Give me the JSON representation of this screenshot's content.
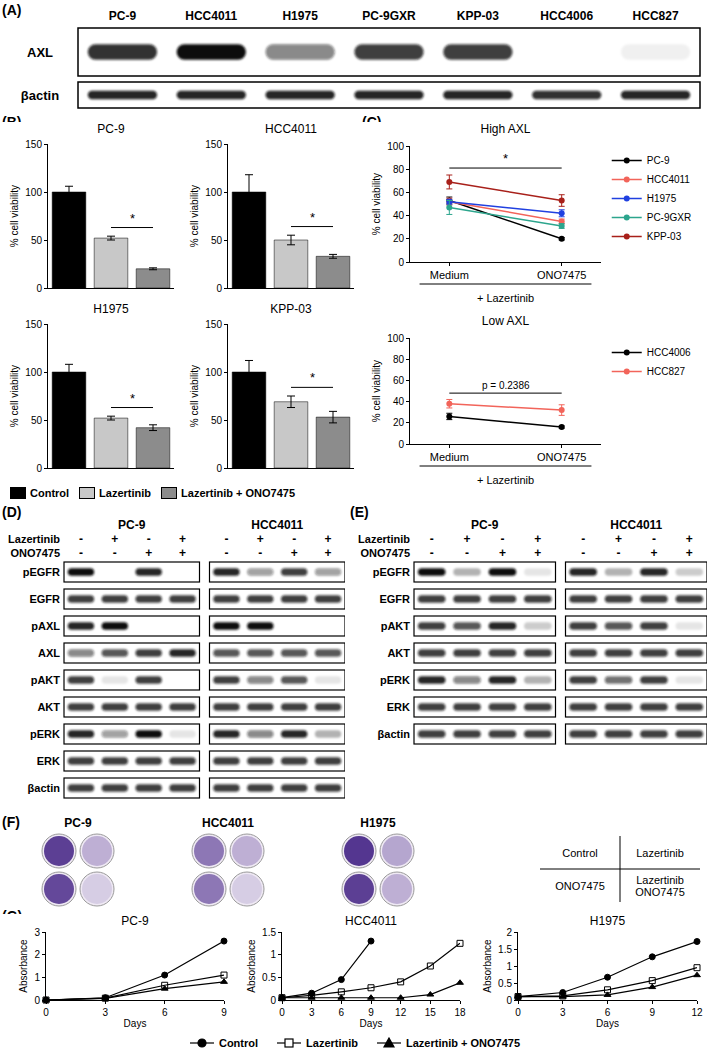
{
  "panel_labels": [
    "(A)",
    "(B)",
    "(C)",
    "(D)",
    "(E)",
    "(F)",
    "(G)"
  ],
  "blot_A": {
    "lanes": [
      "PC-9",
      "HCC4011",
      "H1975",
      "PC-9GXR",
      "KPP-03",
      "HCC4006",
      "HCC827"
    ],
    "rows": [
      {
        "name": "AXL",
        "bands": [
          0.85,
          1,
          0.5,
          0.8,
          0.8,
          0,
          0.06
        ]
      },
      {
        "name": "βactin",
        "bands": [
          0.9,
          0.9,
          0.9,
          0.9,
          0.9,
          0.85,
          0.9
        ]
      }
    ]
  },
  "chart_data": [
    {
      "type": "bar",
      "title": "PC-9",
      "categories": [
        null,
        null,
        null
      ],
      "values": [
        100,
        52,
        20
      ],
      "errors": [
        6,
        2,
        1
      ],
      "colors": [
        "#000000",
        "#c8c8c8",
        "#8c8c8c"
      ],
      "ylabel": "% cell viability",
      "ylim": [
        0,
        150
      ],
      "yticks": [
        0,
        50,
        100,
        150
      ],
      "grid": false,
      "tick_labels": "y",
      "annotations": [
        {
          "text": "*",
          "from": 1,
          "to": 2
        }
      ]
    },
    {
      "type": "bar",
      "title": "HCC4011",
      "categories": [
        null,
        null,
        null
      ],
      "values": [
        100,
        50,
        33
      ],
      "errors": [
        18,
        5,
        2
      ],
      "colors": [
        "#000000",
        "#c8c8c8",
        "#8c8c8c"
      ],
      "ylabel": "% cell viability",
      "ylim": [
        0,
        150
      ],
      "yticks": [
        0,
        50,
        100,
        150
      ],
      "grid": false,
      "tick_labels": "y",
      "annotations": [
        {
          "text": "*",
          "from": 1,
          "to": 2
        }
      ]
    },
    {
      "type": "bar",
      "title": "H1975",
      "categories": [
        null,
        null,
        null
      ],
      "values": [
        100,
        52,
        42
      ],
      "errors": [
        8,
        2,
        3
      ],
      "colors": [
        "#000000",
        "#c8c8c8",
        "#8c8c8c"
      ],
      "ylabel": "% cell viability",
      "ylim": [
        0,
        150
      ],
      "yticks": [
        0,
        50,
        100,
        150
      ],
      "grid": false,
      "tick_labels": "y",
      "annotations": [
        {
          "text": "*",
          "from": 1,
          "to": 2
        }
      ]
    },
    {
      "type": "bar",
      "title": "KPP-03",
      "categories": [
        null,
        null,
        null
      ],
      "values": [
        100,
        69,
        53
      ],
      "errors": [
        12,
        6,
        6
      ],
      "colors": [
        "#000000",
        "#c8c8c8",
        "#8c8c8c"
      ],
      "ylabel": "% cell viability",
      "ylim": [
        0,
        150
      ],
      "yticks": [
        0,
        50,
        100,
        150
      ],
      "grid": false,
      "tick_labels": "y",
      "annotations": [
        {
          "text": "*",
          "from": 1,
          "to": 2
        }
      ]
    },
    {
      "type": "line",
      "title": "High AXL",
      "categories": [
        "Medium",
        "ONO7475"
      ],
      "xlabel": "+ Lazertinib",
      "ylabel": "% cell viability",
      "ylim": [
        0,
        100
      ],
      "yticks": [
        0,
        20,
        40,
        60,
        80,
        100
      ],
      "grid": false,
      "legend": "right",
      "marker": "circle",
      "series": [
        {
          "name": "PC-9",
          "color": "#000000",
          "values": [
            53,
            20
          ],
          "errors": [
            3,
            1
          ]
        },
        {
          "name": "HCC4011",
          "color": "#f2645a",
          "values": [
            52,
            35
          ],
          "errors": [
            3,
            2
          ]
        },
        {
          "name": "H1975",
          "color": "#2040e0",
          "values": [
            52,
            42
          ],
          "errors": [
            2,
            3
          ]
        },
        {
          "name": "PC-9GXR",
          "color": "#2ca58d",
          "values": [
            47,
            31
          ],
          "errors": [
            6,
            2
          ]
        },
        {
          "name": "KPP-03",
          "color": "#a8201a",
          "values": [
            69,
            53
          ],
          "errors": [
            6,
            5
          ]
        }
      ],
      "annotations": [
        {
          "text": "*",
          "from": 0,
          "to": 1
        }
      ]
    },
    {
      "type": "line",
      "title": "Low AXL",
      "categories": [
        "Medium",
        "ONO7475"
      ],
      "xlabel": "+ Lazertinib",
      "ylabel": "% cell viability",
      "ylim": [
        0,
        100
      ],
      "yticks": [
        0,
        20,
        40,
        60,
        80,
        100
      ],
      "grid": false,
      "legend": "right",
      "marker": "circle",
      "series": [
        {
          "name": "HCC4006",
          "color": "#000000",
          "values": [
            26,
            16
          ],
          "errors": [
            3,
            1
          ]
        },
        {
          "name": "HCC827",
          "color": "#f2645a",
          "values": [
            38,
            32
          ],
          "errors": [
            4,
            5
          ]
        }
      ],
      "annotations": [
        {
          "text": "p = 0.2386",
          "from": 0,
          "to": 1
        }
      ]
    },
    {
      "type": "line",
      "title": "PC-9",
      "x": [
        0,
        3,
        6,
        9
      ],
      "xlabel": "Days",
      "ylabel": "Absorbance",
      "xlim": [
        0,
        9
      ],
      "xticks": [
        0,
        3,
        6,
        9
      ],
      "ylim": [
        0,
        3
      ],
      "yticks": [
        0,
        1,
        2,
        3
      ],
      "grid": false,
      "series": [
        {
          "name": "Control",
          "color": "#000000",
          "marker": "circle",
          "values": [
            0,
            0.1,
            1.1,
            2.6
          ]
        },
        {
          "name": "Lazertinib",
          "color": "#000000",
          "marker": "square-open",
          "values": [
            0,
            0.08,
            0.65,
            1.1
          ]
        },
        {
          "name": "Lazertinib + ONO7475",
          "color": "#000000",
          "marker": "triangle-up",
          "values": [
            0,
            0.07,
            0.5,
            0.8
          ]
        }
      ]
    },
    {
      "type": "line",
      "title": "HCC4011",
      "x": [
        0,
        3,
        6,
        9,
        12,
        15,
        18
      ],
      "xlabel": "Days",
      "ylabel": "Absorbance",
      "xlim": [
        0,
        18
      ],
      "xticks": [
        0,
        3,
        6,
        9,
        12,
        15,
        18
      ],
      "ylim": [
        0,
        1.5
      ],
      "yticks": [
        0,
        0.5,
        1,
        1.5
      ],
      "grid": false,
      "series": [
        {
          "name": "Control",
          "color": "#000000",
          "marker": "circle",
          "values": [
            0.05,
            0.15,
            0.45,
            1.3,
            null,
            null,
            null
          ]
        },
        {
          "name": "Lazertinib",
          "color": "#000000",
          "marker": "square-open",
          "values": [
            0.05,
            0.1,
            0.18,
            0.27,
            0.4,
            0.75,
            1.25
          ]
        },
        {
          "name": "Lazertinib + ONO7475",
          "color": "#000000",
          "marker": "triangle-up",
          "values": [
            0.05,
            0.05,
            0.05,
            0.05,
            0.05,
            0.12,
            0.38
          ]
        }
      ]
    },
    {
      "type": "line",
      "title": "H1975",
      "x": [
        0,
        3,
        6,
        9,
        12
      ],
      "xlabel": "Days",
      "ylabel": "Absorbance",
      "xlim": [
        0,
        12
      ],
      "xticks": [
        0,
        3,
        6,
        9,
        12
      ],
      "ylim": [
        0,
        2
      ],
      "yticks": [
        0,
        0.5,
        1,
        1.5,
        2
      ],
      "grid": false,
      "series": [
        {
          "name": "Control",
          "color": "#000000",
          "marker": "circle",
          "values": [
            0.1,
            0.22,
            0.67,
            1.27,
            1.72
          ]
        },
        {
          "name": "Lazertinib",
          "color": "#000000",
          "marker": "square-open",
          "values": [
            0.1,
            0.12,
            0.3,
            0.57,
            0.95
          ]
        },
        {
          "name": "Lazertinib + ONO7475",
          "color": "#000000",
          "marker": "triangle-up",
          "values": [
            0.1,
            0.1,
            0.15,
            0.38,
            0.73
          ]
        }
      ]
    }
  ],
  "legend_B": [
    "Control",
    "Lazertinib",
    "Lazertinib + ONO7475"
  ],
  "blot_D": {
    "treatments": [
      {
        "name": "Lazertinib",
        "signs": [
          "-",
          "+",
          "-",
          "+"
        ]
      },
      {
        "name": "ONO7475",
        "signs": [
          "-",
          "-",
          "+",
          "+"
        ]
      }
    ],
    "rows": [
      "pEGFR",
      "EGFR",
      "pAXL",
      "AXL",
      "pAKT",
      "AKT",
      "pERK",
      "ERK",
      "βactin"
    ],
    "groups": [
      {
        "name": "PC-9",
        "bands": [
          [
            1,
            0,
            0.9,
            0
          ],
          [
            0.8,
            0.8,
            0.8,
            0.8
          ],
          [
            0.9,
            1,
            0,
            0
          ],
          [
            0.5,
            0.7,
            0.8,
            0.9
          ],
          [
            0.8,
            0.1,
            0.8,
            0
          ],
          [
            0.8,
            0.8,
            0.8,
            0.8
          ],
          [
            0.9,
            0.4,
            1,
            0.1
          ],
          [
            0.8,
            0.8,
            0.8,
            0.8
          ],
          [
            0.8,
            0.8,
            0.8,
            0.8
          ]
        ]
      },
      {
        "name": "HCC4011",
        "bands": [
          [
            0.9,
            0.4,
            0.8,
            0.4
          ],
          [
            0.8,
            0.8,
            0.8,
            0.8
          ],
          [
            1,
            1,
            0,
            0
          ],
          [
            0.7,
            0.7,
            0.7,
            0.7
          ],
          [
            0.8,
            0.5,
            0.7,
            0.1
          ],
          [
            0.8,
            0.8,
            0.8,
            0.8
          ],
          [
            0.9,
            0.5,
            0.9,
            0.3
          ],
          [
            0.8,
            0.8,
            0.8,
            0.8
          ],
          [
            0.8,
            0.8,
            0.8,
            0.8
          ]
        ]
      }
    ]
  },
  "blot_E": {
    "treatments": [
      {
        "name": "Lazertinib",
        "signs": [
          "-",
          "+",
          "-",
          "+"
        ]
      },
      {
        "name": "ONO7475",
        "signs": [
          "-",
          "-",
          "+",
          "+"
        ]
      }
    ],
    "rows": [
      "pEGFR",
      "EGFR",
      "pAKT",
      "AKT",
      "pERK",
      "ERK",
      "βactin"
    ],
    "groups": [
      {
        "name": "PC-9",
        "bands": [
          [
            1,
            0.3,
            1,
            0.1
          ],
          [
            0.8,
            0.8,
            0.8,
            0.8
          ],
          [
            0.8,
            0.7,
            0.9,
            0.2
          ],
          [
            0.8,
            0.8,
            0.8,
            0.8
          ],
          [
            0.9,
            0.5,
            0.9,
            0.3
          ],
          [
            0.8,
            0.8,
            0.8,
            0.8
          ],
          [
            0.8,
            0.8,
            0.8,
            0.8
          ]
        ]
      },
      {
        "name": "HCC4011",
        "bands": [
          [
            0.9,
            0.3,
            0.9,
            0.2
          ],
          [
            0.8,
            0.8,
            0.8,
            0.8
          ],
          [
            0.8,
            0.7,
            0.8,
            0.1
          ],
          [
            0.8,
            0.8,
            0.8,
            0.8
          ],
          [
            0.8,
            0.6,
            0.8,
            0.1
          ],
          [
            0.8,
            0.8,
            0.8,
            0.8
          ],
          [
            0.8,
            0.8,
            0.8,
            0.8
          ]
        ]
      }
    ]
  },
  "colony_F": {
    "groups": [
      {
        "name": "PC-9",
        "wells": [
          0.9,
          0.3,
          0.85,
          0.15
        ]
      },
      {
        "name": "HCC4011",
        "wells": [
          0.6,
          0.3,
          0.6,
          0.15
        ]
      },
      {
        "name": "H1975",
        "wells": [
          0.95,
          0.35,
          0.9,
          0.3
        ]
      }
    ],
    "key": [
      [
        "Control"
      ],
      [
        "Lazertinib"
      ],
      [
        "ONO7475"
      ],
      [
        "Lazertinib",
        "ONO7475"
      ]
    ]
  }
}
